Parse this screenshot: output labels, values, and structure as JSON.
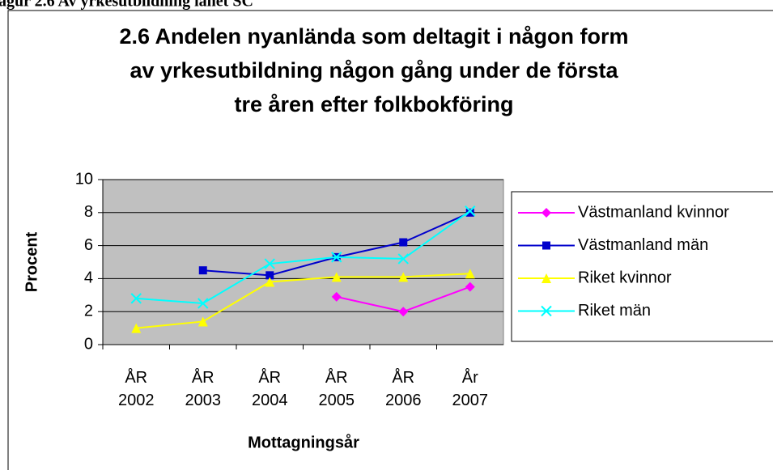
{
  "heading": "agur 2.6 Av yrkesutbildning länet SC",
  "chart_data": {
    "type": "line",
    "title": [
      "2.6 Andelen nyanlända som deltagit i någon form",
      "av yrkesutbildning någon gång under de första",
      "tre åren efter folkbokföring"
    ],
    "x_label": "Mottagningsår",
    "y_label": "Procent",
    "categories": [
      "ÅR 2002",
      "ÅR 2003",
      "ÅR 2004",
      "ÅR 2005",
      "ÅR 2006",
      "År 2007"
    ],
    "series": [
      {
        "name": "Västmanland kvinnor",
        "color": "#ff00ff",
        "marker": "diamond",
        "values": [
          null,
          null,
          null,
          2.9,
          2.0,
          3.5
        ]
      },
      {
        "name": "Västmanland män",
        "color": "#0000cc",
        "marker": "square",
        "values": [
          null,
          4.5,
          4.2,
          5.3,
          6.2,
          8.0
        ]
      },
      {
        "name": "Riket kvinnor",
        "color": "#ffff00",
        "marker": "triangle",
        "values": [
          1.0,
          1.4,
          3.8,
          4.1,
          4.1,
          4.3
        ]
      },
      {
        "name": "Riket män",
        "color": "#00ffff",
        "marker": "x",
        "values": [
          2.8,
          2.5,
          4.9,
          5.3,
          5.2,
          8.1
        ]
      }
    ],
    "ylim": [
      0,
      10
    ],
    "yticks": [
      0,
      2,
      4,
      6,
      8,
      10
    ],
    "grid": true,
    "legend": "right"
  }
}
